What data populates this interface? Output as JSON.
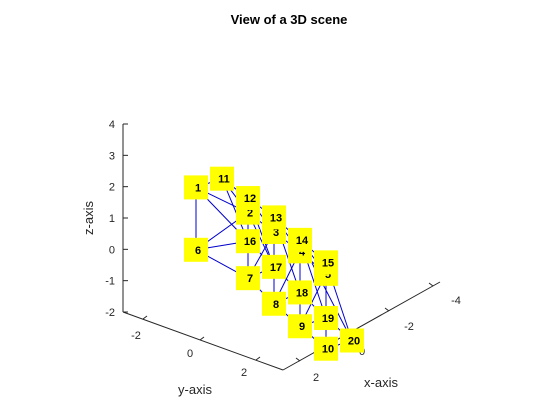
{
  "figure": {
    "title": "View of a 3D scene",
    "xlabel": "x-axis",
    "ylabel": "y-axis",
    "zlabel": "z-axis"
  },
  "chart_data": {
    "type": "graph3d",
    "title": "View of a 3D scene",
    "xlabel": "x-axis",
    "ylabel": "y-axis",
    "zlabel": "z-axis",
    "xlim": [
      -5,
      3
    ],
    "ylim": [
      -3,
      3
    ],
    "zlim": [
      -2,
      4
    ],
    "xticks": [
      "-4",
      "-2",
      "0",
      "2"
    ],
    "yticks": [
      "-2",
      "0",
      "2"
    ],
    "zticks": [
      "-2",
      "-1",
      "0",
      "1",
      "2",
      "3",
      "4"
    ],
    "grid": false,
    "colors": {
      "edge": "#0000cc",
      "node_fill": "#ffff00",
      "axis": "#262626"
    },
    "nodes": [
      {
        "id": "1",
        "x": 0.0,
        "y": -2.0,
        "z": 3.0
      },
      {
        "id": "2",
        "x": 0.0,
        "y": 0.0,
        "z": 2.8
      },
      {
        "id": "3",
        "x": -1.0,
        "y": 0.0,
        "z": 2.5
      },
      {
        "id": "4",
        "x": -2.0,
        "y": 0.0,
        "z": 2.2
      },
      {
        "id": "5",
        "x": -3.0,
        "y": 0.0,
        "z": 1.8
      },
      {
        "id": "6",
        "x": 0.0,
        "y": -2.0,
        "z": 1.0
      },
      {
        "id": "7",
        "x": 0.0,
        "y": 0.0,
        "z": 0.7
      },
      {
        "id": "8",
        "x": -1.0,
        "y": 0.0,
        "z": 0.2
      },
      {
        "id": "9",
        "x": -2.0,
        "y": 0.0,
        "z": -0.2
      },
      {
        "id": "10",
        "x": -3.0,
        "y": 0.0,
        "z": -0.6
      },
      {
        "id": "11",
        "x": -1.0,
        "y": -2.0,
        "z": 3.6
      },
      {
        "id": "12",
        "x": -2.0,
        "y": -2.0,
        "z": 3.3
      },
      {
        "id": "13",
        "x": -3.0,
        "y": -2.0,
        "z": 3.0
      },
      {
        "id": "14",
        "x": -4.0,
        "y": -2.0,
        "z": 2.6
      },
      {
        "id": "15",
        "x": -5.0,
        "y": -2.0,
        "z": 2.2
      },
      {
        "id": "16",
        "x": -1.0,
        "y": -1.0,
        "z": 1.9
      },
      {
        "id": "17",
        "x": -2.0,
        "y": -1.0,
        "z": 1.4
      },
      {
        "id": "18",
        "x": -3.0,
        "y": -1.0,
        "z": 0.9
      },
      {
        "id": "19",
        "x": -4.0,
        "y": -1.0,
        "z": 0.4
      },
      {
        "id": "20",
        "x": -5.0,
        "y": -1.0,
        "z": 0.0
      }
    ],
    "edges": [
      [
        "1",
        "2"
      ],
      [
        "2",
        "3"
      ],
      [
        "3",
        "4"
      ],
      [
        "4",
        "5"
      ],
      [
        "6",
        "7"
      ],
      [
        "7",
        "8"
      ],
      [
        "8",
        "9"
      ],
      [
        "9",
        "10"
      ],
      [
        "11",
        "12"
      ],
      [
        "12",
        "13"
      ],
      [
        "13",
        "14"
      ],
      [
        "14",
        "15"
      ],
      [
        "16",
        "17"
      ],
      [
        "17",
        "18"
      ],
      [
        "18",
        "19"
      ],
      [
        "19",
        "20"
      ],
      [
        "1",
        "6"
      ],
      [
        "2",
        "7"
      ],
      [
        "3",
        "8"
      ],
      [
        "4",
        "9"
      ],
      [
        "5",
        "10"
      ],
      [
        "1",
        "11"
      ],
      [
        "2",
        "11"
      ],
      [
        "2",
        "12"
      ],
      [
        "3",
        "12"
      ],
      [
        "3",
        "13"
      ],
      [
        "4",
        "13"
      ],
      [
        "4",
        "14"
      ],
      [
        "5",
        "14"
      ],
      [
        "5",
        "15"
      ],
      [
        "6",
        "16"
      ],
      [
        "7",
        "16"
      ],
      [
        "7",
        "17"
      ],
      [
        "8",
        "17"
      ],
      [
        "8",
        "18"
      ],
      [
        "9",
        "18"
      ],
      [
        "9",
        "19"
      ],
      [
        "10",
        "19"
      ],
      [
        "10",
        "20"
      ],
      [
        "11",
        "16"
      ],
      [
        "12",
        "17"
      ],
      [
        "13",
        "18"
      ],
      [
        "14",
        "19"
      ],
      [
        "15",
        "20"
      ],
      [
        "1",
        "16"
      ],
      [
        "2",
        "16"
      ],
      [
        "2",
        "17"
      ],
      [
        "3",
        "17"
      ],
      [
        "4",
        "18"
      ],
      [
        "5",
        "19"
      ],
      [
        "15",
        "19"
      ],
      [
        "14",
        "20"
      ],
      [
        "6",
        "2"
      ],
      [
        "7",
        "3"
      ],
      [
        "8",
        "4"
      ],
      [
        "9",
        "5"
      ]
    ]
  }
}
